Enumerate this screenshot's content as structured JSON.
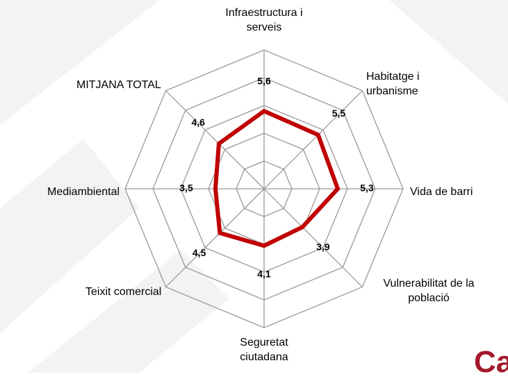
{
  "chart_data": {
    "type": "radar",
    "categories": [
      "Infraestructura i serveis",
      "Habitatge i urbanisme",
      "Vida de barri",
      "Vulnerabilitat de la població",
      "Seguretat ciutadana",
      "Teixit comercial",
      "Mediambiental",
      "MITJANA TOTAL"
    ],
    "values": [
      5.6,
      5.5,
      5.3,
      3.9,
      4.1,
      4.5,
      3.5,
      4.6
    ],
    "value_labels": [
      "5,6",
      "5,5",
      "5,3",
      "3,9",
      "4,1",
      "4,5",
      "3,5",
      "4,6"
    ],
    "color": "#c00000",
    "rlim": [
      0,
      10
    ],
    "rticks": [
      0,
      2,
      4,
      6,
      8,
      10
    ],
    "grid": true,
    "corner_text": "Ca"
  }
}
